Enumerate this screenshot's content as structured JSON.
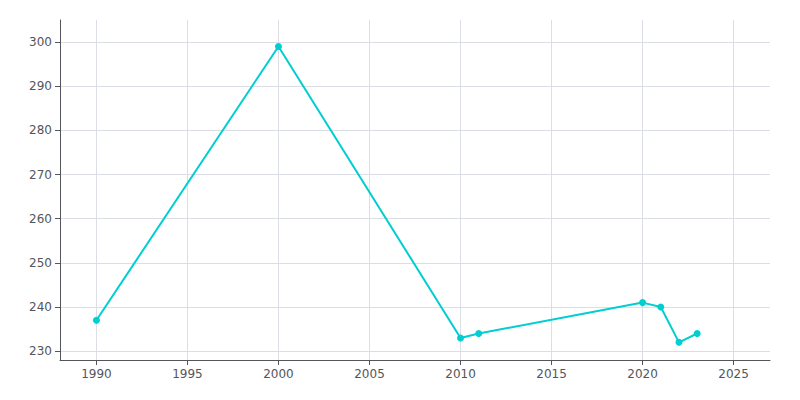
{
  "chart_data": {
    "type": "line",
    "x": [
      1990,
      2000,
      2010,
      2011,
      2020,
      2021,
      2022,
      2023
    ],
    "values": [
      237,
      299,
      233,
      234,
      241,
      240,
      232,
      234
    ],
    "color": "#00CED1",
    "marker": "circle",
    "xlim": [
      1988,
      2027
    ],
    "xticks": [
      1990,
      1995,
      2000,
      2005,
      2010,
      2015,
      2020,
      2025
    ],
    "ylim": [
      228,
      305
    ],
    "yticks": [
      230,
      240,
      250,
      260,
      270,
      280,
      290,
      300
    ],
    "grid": true
  }
}
